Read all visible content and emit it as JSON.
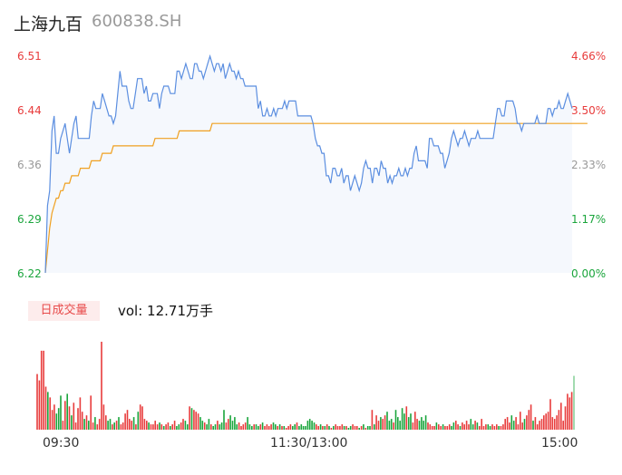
{
  "header": {
    "name": "上海九百",
    "code": "600838.SH"
  },
  "colors": {
    "price_line": "#5b8ee0",
    "avg_line": "#f0a020",
    "up": "#e83c3c",
    "down": "#1aa53c",
    "neutral": "#999999"
  },
  "volume": {
    "tab_label": "日成交量",
    "text": "vol: 12.71万手"
  },
  "chart_data": {
    "type": "line",
    "y_left_ticks": [
      "6.51",
      "6.44",
      "6.36",
      "6.29",
      "6.22"
    ],
    "y_right_ticks": [
      "4.66%",
      "3.50%",
      "2.33%",
      "1.17%",
      "0.00%"
    ],
    "x_ticks": [
      "09:30",
      "11:30/13:00",
      "15:00"
    ],
    "ylim": [
      6.22,
      6.51
    ],
    "price": [
      6.22,
      6.31,
      6.33,
      6.41,
      6.43,
      6.38,
      6.38,
      6.4,
      6.41,
      6.42,
      6.4,
      6.38,
      6.4,
      6.42,
      6.43,
      6.4,
      6.4,
      6.4,
      6.4,
      6.4,
      6.4,
      6.43,
      6.45,
      6.44,
      6.44,
      6.44,
      6.46,
      6.45,
      6.44,
      6.43,
      6.43,
      6.42,
      6.43,
      6.46,
      6.49,
      6.47,
      6.47,
      6.47,
      6.45,
      6.44,
      6.44,
      6.46,
      6.48,
      6.48,
      6.48,
      6.46,
      6.47,
      6.45,
      6.45,
      6.46,
      6.46,
      6.46,
      6.44,
      6.46,
      6.47,
      6.47,
      6.47,
      6.46,
      6.46,
      6.46,
      6.49,
      6.49,
      6.48,
      6.49,
      6.5,
      6.49,
      6.48,
      6.48,
      6.5,
      6.5,
      6.49,
      6.49,
      6.48,
      6.49,
      6.5,
      6.51,
      6.5,
      6.49,
      6.5,
      6.5,
      6.49,
      6.5,
      6.48,
      6.49,
      6.5,
      6.49,
      6.49,
      6.48,
      6.49,
      6.48,
      6.48,
      6.47,
      6.47,
      6.47,
      6.47,
      6.47,
      6.47,
      6.44,
      6.45,
      6.43,
      6.43,
      6.44,
      6.43,
      6.43,
      6.44,
      6.43,
      6.44,
      6.44,
      6.44,
      6.45,
      6.44,
      6.45,
      6.45,
      6.45,
      6.45,
      6.43,
      6.43,
      6.43,
      6.43,
      6.43,
      6.43,
      6.43,
      6.42,
      6.4,
      6.39,
      6.39,
      6.38,
      6.38,
      6.35,
      6.35,
      6.34,
      6.36,
      6.36,
      6.35,
      6.35,
      6.36,
      6.34,
      6.35,
      6.35,
      6.33,
      6.34,
      6.35,
      6.34,
      6.33,
      6.34,
      6.36,
      6.37,
      6.36,
      6.36,
      6.34,
      6.36,
      6.36,
      6.35,
      6.37,
      6.36,
      6.36,
      6.34,
      6.35,
      6.34,
      6.35,
      6.35,
      6.36,
      6.35,
      6.35,
      6.36,
      6.35,
      6.36,
      6.36,
      6.38,
      6.39,
      6.37,
      6.37,
      6.37,
      6.37,
      6.36,
      6.4,
      6.4,
      6.39,
      6.39,
      6.39,
      6.38,
      6.38,
      6.36,
      6.37,
      6.38,
      6.4,
      6.41,
      6.4,
      6.39,
      6.4,
      6.4,
      6.41,
      6.4,
      6.39,
      6.4,
      6.4,
      6.4,
      6.41,
      6.4,
      6.4,
      6.4,
      6.4,
      6.4,
      6.4,
      6.4,
      6.42,
      6.44,
      6.44,
      6.43,
      6.43,
      6.45,
      6.45,
      6.45,
      6.45,
      6.44,
      6.42,
      6.42,
      6.41,
      6.42,
      6.42,
      6.42,
      6.42,
      6.42,
      6.42,
      6.43,
      6.42,
      6.42,
      6.42,
      6.42,
      6.44,
      6.44,
      6.43,
      6.44,
      6.44,
      6.45,
      6.44,
      6.44,
      6.45,
      6.46,
      6.45,
      6.44
    ],
    "avg": [
      6.22,
      6.25,
      6.28,
      6.3,
      6.31,
      6.32,
      6.32,
      6.33,
      6.33,
      6.34,
      6.34,
      6.34,
      6.35,
      6.35,
      6.35,
      6.35,
      6.36,
      6.36,
      6.36,
      6.36,
      6.36,
      6.37,
      6.37,
      6.37,
      6.37,
      6.37,
      6.38,
      6.38,
      6.38,
      6.38,
      6.38,
      6.39,
      6.39,
      6.39,
      6.39,
      6.39,
      6.39,
      6.39,
      6.39,
      6.39,
      6.39,
      6.39,
      6.39,
      6.39,
      6.39,
      6.39,
      6.39,
      6.39,
      6.39,
      6.39,
      6.4,
      6.4,
      6.4,
      6.4,
      6.4,
      6.4,
      6.4,
      6.4,
      6.4,
      6.4,
      6.4,
      6.41,
      6.41,
      6.41,
      6.41,
      6.41,
      6.41,
      6.41,
      6.41,
      6.41,
      6.41,
      6.41,
      6.41,
      6.41,
      6.41,
      6.41,
      6.42,
      6.42,
      6.42,
      6.42,
      6.42,
      6.42,
      6.42,
      6.42,
      6.42,
      6.42,
      6.42,
      6.42,
      6.42,
      6.42,
      6.42,
      6.42,
      6.42,
      6.42,
      6.42,
      6.42,
      6.42,
      6.42,
      6.42,
      6.42,
      6.42,
      6.42,
      6.42,
      6.42,
      6.42,
      6.42,
      6.42,
      6.42,
      6.42,
      6.42,
      6.42,
      6.42,
      6.42,
      6.42,
      6.42,
      6.42,
      6.42,
      6.42,
      6.42,
      6.42,
      6.42,
      6.42,
      6.42,
      6.42,
      6.42,
      6.42,
      6.42,
      6.42,
      6.42,
      6.42,
      6.42,
      6.42,
      6.42,
      6.42,
      6.42,
      6.42,
      6.42,
      6.42,
      6.42,
      6.42,
      6.42,
      6.42,
      6.42,
      6.42,
      6.42,
      6.42,
      6.42,
      6.42,
      6.42,
      6.42,
      6.42,
      6.42,
      6.42,
      6.42,
      6.42,
      6.42,
      6.42,
      6.42,
      6.42,
      6.42,
      6.42,
      6.42,
      6.42,
      6.42,
      6.42,
      6.42,
      6.42,
      6.42,
      6.42,
      6.42,
      6.42,
      6.42,
      6.42,
      6.42,
      6.42,
      6.42,
      6.42,
      6.42,
      6.42,
      6.42,
      6.42,
      6.42,
      6.42,
      6.42,
      6.42,
      6.42,
      6.42,
      6.42,
      6.42,
      6.42,
      6.42,
      6.42,
      6.42,
      6.42,
      6.42,
      6.42,
      6.42,
      6.42,
      6.42,
      6.42,
      6.42,
      6.42,
      6.42,
      6.42,
      6.42,
      6.42,
      6.42,
      6.42,
      6.42,
      6.42,
      6.42,
      6.42,
      6.42,
      6.42,
      6.42,
      6.42,
      6.42,
      6.42,
      6.42,
      6.42,
      6.42,
      6.42,
      6.42,
      6.42,
      6.42,
      6.42,
      6.42,
      6.42,
      6.42,
      6.42,
      6.42,
      6.42,
      6.42,
      6.42,
      6.42,
      6.42,
      6.42,
      6.42,
      6.42,
      6.42,
      6.42,
      6.42,
      6.42,
      6.42,
      6.42,
      6.42,
      6.42,
      6.42
    ],
    "volumes": [
      0.62,
      0.55,
      0.88,
      0.88,
      0.48,
      0.42,
      0.36,
      0.22,
      0.28,
      0.18,
      0.24,
      0.38,
      0.1,
      0.32,
      0.4,
      0.26,
      0.16,
      0.3,
      0.08,
      0.24,
      0.36,
      0.2,
      0.12,
      0.16,
      0.1,
      0.38,
      0.08,
      0.14,
      0.06,
      0.12,
      0.98,
      0.28,
      0.16,
      0.1,
      0.12,
      0.06,
      0.08,
      0.1,
      0.14,
      0.06,
      0.08,
      0.18,
      0.22,
      0.12,
      0.1,
      0.14,
      0.06,
      0.2,
      0.28,
      0.26,
      0.12,
      0.1,
      0.08,
      0.06,
      0.06,
      0.1,
      0.06,
      0.08,
      0.06,
      0.04,
      0.06,
      0.08,
      0.04,
      0.06,
      0.1,
      0.04,
      0.06,
      0.08,
      0.12,
      0.1,
      0.06,
      0.26,
      0.24,
      0.22,
      0.2,
      0.18,
      0.14,
      0.1,
      0.08,
      0.06,
      0.12,
      0.06,
      0.04,
      0.06,
      0.1,
      0.06,
      0.08,
      0.22,
      0.08,
      0.12,
      0.16,
      0.1,
      0.14,
      0.06,
      0.08,
      0.04,
      0.06,
      0.08,
      0.14,
      0.06,
      0.04,
      0.06,
      0.06,
      0.04,
      0.06,
      0.08,
      0.04,
      0.06,
      0.04,
      0.06,
      0.08,
      0.06,
      0.04,
      0.06,
      0.04,
      0.04,
      0.02,
      0.04,
      0.06,
      0.04,
      0.06,
      0.08,
      0.04,
      0.06,
      0.04,
      0.04,
      0.1,
      0.12,
      0.1,
      0.08,
      0.06,
      0.04,
      0.06,
      0.04,
      0.04,
      0.06,
      0.04,
      0.02,
      0.04,
      0.06,
      0.04,
      0.04,
      0.06,
      0.04,
      0.04,
      0.02,
      0.04,
      0.06,
      0.04,
      0.04,
      0.02,
      0.04,
      0.06,
      0.02,
      0.04,
      0.04,
      0.22,
      0.06,
      0.16,
      0.1,
      0.14,
      0.12,
      0.16,
      0.2,
      0.1,
      0.12,
      0.08,
      0.22,
      0.14,
      0.1,
      0.24,
      0.18,
      0.26,
      0.14,
      0.18,
      0.08,
      0.2,
      0.12,
      0.1,
      0.14,
      0.1,
      0.16,
      0.08,
      0.06,
      0.04,
      0.04,
      0.08,
      0.06,
      0.04,
      0.06,
      0.04,
      0.04,
      0.06,
      0.04,
      0.08,
      0.1,
      0.06,
      0.04,
      0.08,
      0.06,
      0.1,
      0.06,
      0.12,
      0.06,
      0.1,
      0.08,
      0.04,
      0.12,
      0.04,
      0.06,
      0.06,
      0.04,
      0.06,
      0.04,
      0.06,
      0.04,
      0.04,
      0.06,
      0.12,
      0.14,
      0.08,
      0.16,
      0.1,
      0.14,
      0.06,
      0.2,
      0.08,
      0.12,
      0.16,
      0.22,
      0.28,
      0.1,
      0.14,
      0.06,
      0.1,
      0.12,
      0.16,
      0.18,
      0.2,
      0.34,
      0.14,
      0.12,
      0.16,
      0.22,
      0.3,
      0.1,
      0.26,
      0.4,
      0.36,
      0.42,
      0.6
    ],
    "volume_up": [
      1,
      1,
      1,
      1,
      1,
      0,
      1,
      1,
      1,
      0,
      0,
      0,
      1,
      1,
      0,
      1,
      0,
      1,
      1,
      1,
      1,
      1,
      0,
      1,
      0,
      1,
      1,
      0,
      1,
      1,
      1,
      1,
      1,
      0,
      0,
      1,
      0,
      1,
      0,
      1,
      1,
      1,
      1,
      1,
      1,
      0,
      1,
      0,
      1,
      1,
      1,
      1,
      0,
      1,
      1,
      1,
      1,
      0,
      1,
      0,
      1,
      1,
      0,
      1,
      1,
      0,
      0,
      1,
      1,
      0,
      0,
      1,
      0,
      1,
      1,
      1,
      0,
      0,
      1,
      0,
      0,
      1,
      0,
      0,
      1,
      0,
      0,
      0,
      1,
      1,
      0,
      0,
      0,
      0,
      1,
      1,
      1,
      1,
      0,
      0,
      0,
      1,
      0,
      0,
      1,
      0,
      1,
      1,
      1,
      1,
      0,
      0,
      1,
      0,
      1,
      0,
      1,
      1,
      1,
      0,
      0,
      1,
      0,
      0,
      0,
      0,
      0,
      0,
      0,
      0,
      1,
      1,
      0,
      1,
      0,
      1,
      0,
      1,
      0,
      1,
      1,
      1,
      1,
      0,
      1,
      0,
      0,
      1,
      1,
      1,
      0,
      1,
      0,
      1,
      0,
      0,
      1,
      0,
      1,
      1,
      0,
      1,
      1,
      0,
      0,
      0,
      1,
      0,
      0,
      0,
      0,
      0,
      1,
      0,
      0,
      1,
      1,
      1,
      0,
      0,
      0,
      0,
      1,
      1,
      1,
      1,
      0,
      1,
      1,
      0,
      1,
      1,
      1,
      0,
      0,
      1,
      1,
      0,
      1,
      1,
      1,
      1,
      0,
      0,
      1,
      0,
      1,
      1,
      1,
      1,
      0,
      0,
      1,
      1,
      1,
      0,
      1,
      1,
      1,
      1,
      1,
      0,
      0,
      1,
      1,
      1,
      1,
      0,
      1,
      1,
      1,
      0,
      1,
      1,
      1,
      1,
      1,
      1,
      1,
      1,
      1,
      1,
      1,
      1,
      1,
      1,
      1,
      1,
      1,
      1
    ]
  }
}
